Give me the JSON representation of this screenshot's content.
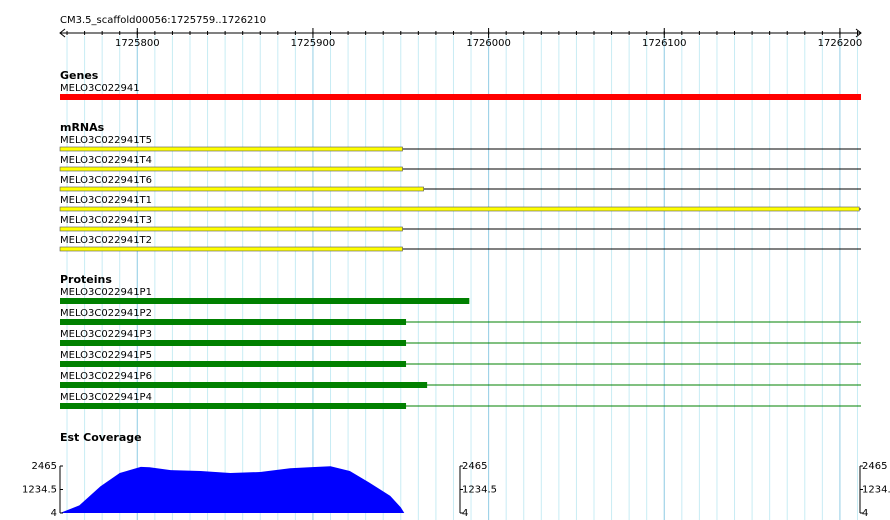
{
  "ruler": {
    "landmark": "CM3.5_scaffold00056:1725759..1726210",
    "xlim": [
      1725756,
      1726212
    ],
    "xticks": [
      1725800,
      1725900,
      1726000,
      1726100,
      1726200
    ],
    "minor_xticks": [
      1725760,
      1725770,
      1725780,
      1725790,
      1725800,
      1725810,
      1725820,
      1725830,
      1725840,
      1725850,
      1725860,
      1725870,
      1725880,
      1725890,
      1725900,
      1725910,
      1725920,
      1725930,
      1725940,
      1725950,
      1725960,
      1725970,
      1725980,
      1725990,
      1726000,
      1726010,
      1726020,
      1726030,
      1726040,
      1726050,
      1726060,
      1726070,
      1726080,
      1726090,
      1726100,
      1726110,
      1726120,
      1726130,
      1726140,
      1726150,
      1726160,
      1726170,
      1726180,
      1726190,
      1726200,
      1726210
    ]
  },
  "tracks": {
    "genes": {
      "title": "Genes",
      "color": "#ff0000",
      "features": [
        {
          "name": "MELO3C022941",
          "start": 1725756,
          "end": 1726212
        }
      ]
    },
    "mrnas": {
      "title": "mRNAs",
      "color": "#ffff00",
      "features": [
        {
          "name": "MELO3C022941T5",
          "start": 1725756,
          "end": 1726212,
          "cds_end": 1725951
        },
        {
          "name": "MELO3C022941T4",
          "start": 1725756,
          "end": 1726212,
          "cds_end": 1725951
        },
        {
          "name": "MELO3C022941T6",
          "start": 1725756,
          "end": 1726212,
          "cds_end": 1725963
        },
        {
          "name": "MELO3C022941T1",
          "start": 1725756,
          "end": 1726212,
          "cds_end": 1726211
        },
        {
          "name": "MELO3C022941T3",
          "start": 1725756,
          "end": 1726212,
          "cds_end": 1725951
        },
        {
          "name": "MELO3C022941T2",
          "start": 1725756,
          "end": 1726212,
          "cds_end": 1725951
        }
      ]
    },
    "proteins": {
      "title": "Proteins",
      "color": "#008000",
      "features": [
        {
          "name": "MELO3C022941P1",
          "start": 1725756,
          "end": 1725989,
          "cds_end": 1725989
        },
        {
          "name": "MELO3C022941P2",
          "start": 1725756,
          "end": 1726212,
          "cds_end": 1725953
        },
        {
          "name": "MELO3C022941P3",
          "start": 1725756,
          "end": 1726212,
          "cds_end": 1725953
        },
        {
          "name": "MELO3C022941P5",
          "start": 1725756,
          "end": 1726212,
          "cds_end": 1725953
        },
        {
          "name": "MELO3C022941P6",
          "start": 1725756,
          "end": 1726212,
          "cds_end": 1725965
        },
        {
          "name": "MELO3C022941P4",
          "start": 1725756,
          "end": 1726212,
          "cds_end": 1725953
        }
      ]
    },
    "coverage": {
      "title": "Est Coverage",
      "color": "#0000ff",
      "positions": [
        1725756,
        1725767,
        1725779,
        1725790,
        1725802,
        1725807,
        1725819,
        1725836,
        1725853,
        1725870,
        1725887,
        1725898,
        1725910,
        1725921,
        1725932,
        1725944,
        1725950,
        1725952
      ],
      "values": [
        4,
        400,
        1400,
        2100,
        2420,
        2400,
        2250,
        2200,
        2100,
        2150,
        2350,
        2400,
        2450,
        2200,
        1600,
        900,
        300,
        4
      ],
      "ylim": [
        4,
        2465
      ],
      "yticks": [
        4,
        1234.5,
        2465
      ]
    }
  }
}
